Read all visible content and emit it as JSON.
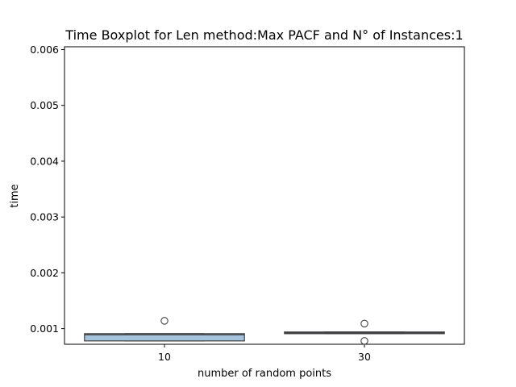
{
  "chart_data": {
    "type": "box",
    "title": "Time Boxplot for Len method:Max PACF and N° of Instances:1",
    "xlabel": "number of random points",
    "ylabel": "time",
    "categories": [
      "10",
      "30"
    ],
    "ylim": [
      0.00072,
      0.00605
    ],
    "yticks": [
      0.001,
      0.002,
      0.003,
      0.004,
      0.005,
      0.006
    ],
    "ytick_labels": [
      "0.001",
      "0.002",
      "0.003",
      "0.004",
      "0.005",
      "0.006"
    ],
    "grid": false,
    "legend": "none",
    "boxes": [
      {
        "category": "10",
        "q1": 0.00078,
        "median": 0.00089,
        "q3": 0.00091,
        "whisker_low": 0.00078,
        "whisker_high": 0.00091,
        "fliers": [
          0.00114
        ],
        "color": "#a6c3dd"
      },
      {
        "category": "30",
        "q1": 0.00091,
        "median": 0.00092,
        "q3": 0.00094,
        "whisker_low": 0.00091,
        "whisker_high": 0.00094,
        "fliers": [
          0.00109,
          0.00078
        ],
        "color": "#3a5a78"
      }
    ]
  }
}
